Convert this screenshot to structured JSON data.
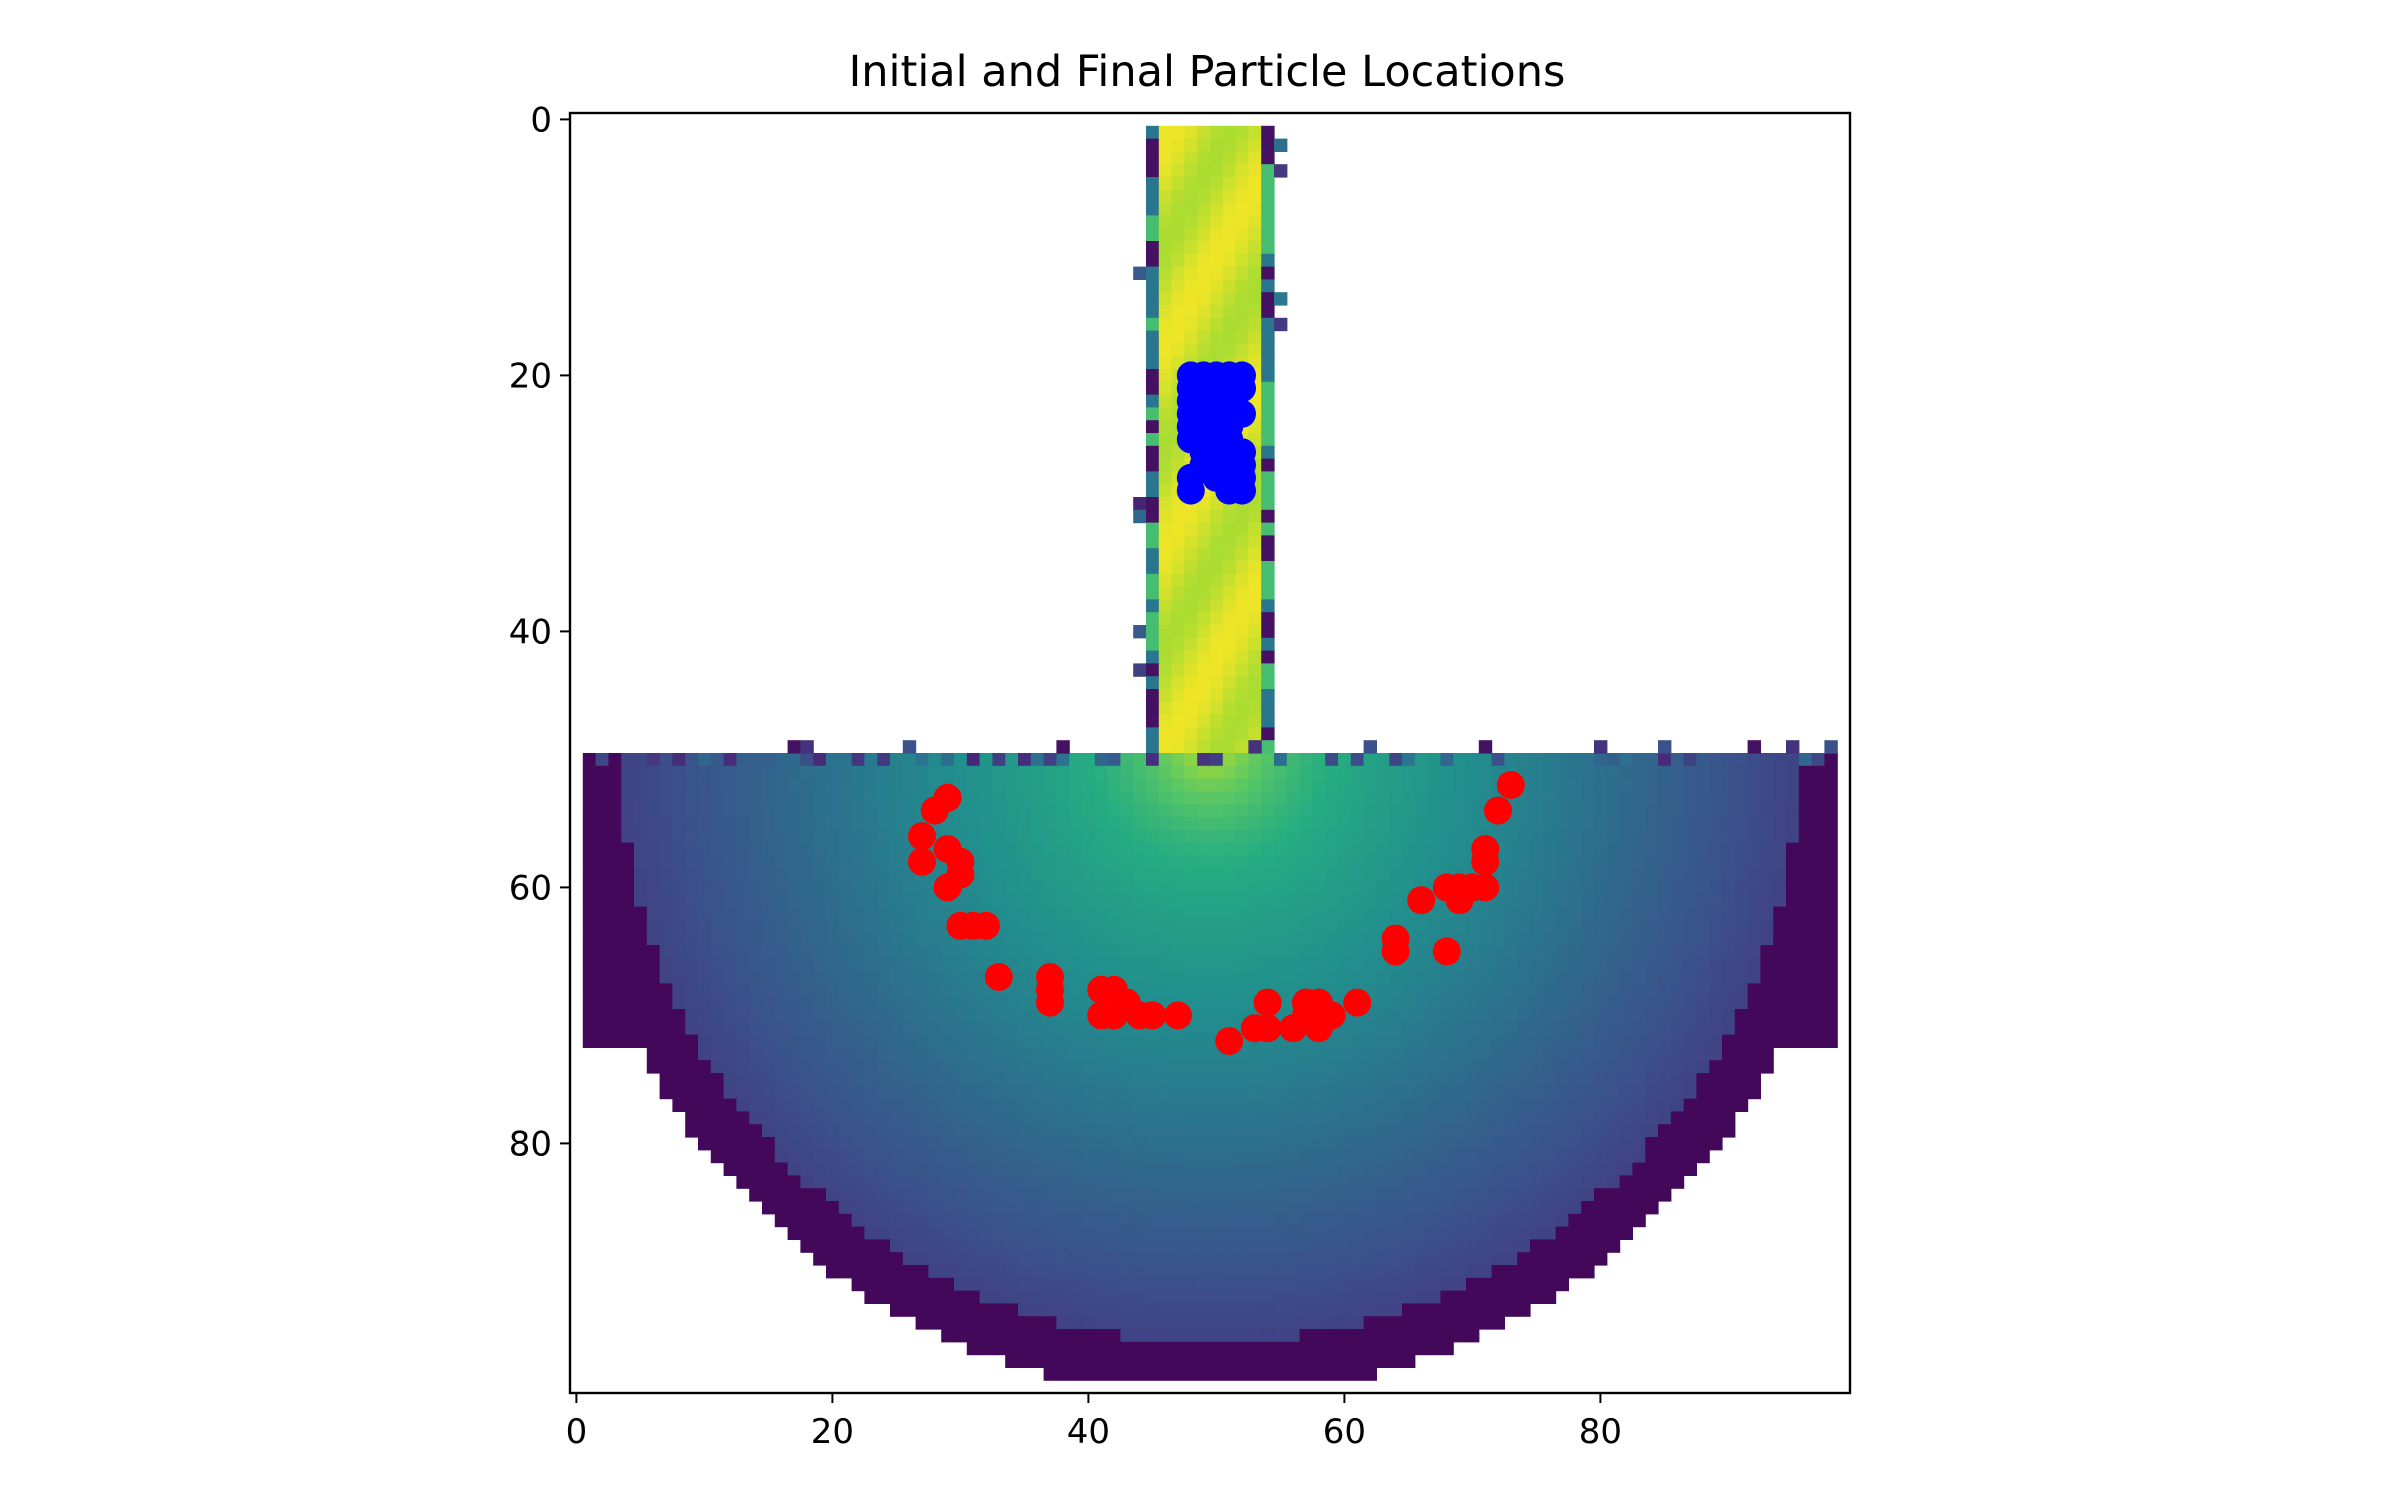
{
  "chart_data": {
    "type": "scatter",
    "title": "Initial and Final Particle Locations",
    "xlabel": "",
    "ylabel": "",
    "xlim": [
      -0.5,
      99.5
    ],
    "ylim": [
      99.5,
      -0.5
    ],
    "y_axis_inverted": true,
    "x_ticks": [
      0,
      20,
      40,
      60,
      80
    ],
    "y_ticks": [
      0,
      20,
      40,
      60,
      80
    ],
    "background": {
      "type": "heatmap",
      "colormap": "viridis",
      "description_regions": [
        "vertical channel columns 45-54, rows 1-49",
        "semi-disc basin rows 50-98"
      ]
    },
    "series": [
      {
        "color": "#0000ff",
        "points": [
          [
            48,
            20
          ],
          [
            49,
            20
          ],
          [
            50,
            20
          ],
          [
            51,
            20
          ],
          [
            52,
            20
          ],
          [
            48,
            21
          ],
          [
            50,
            21
          ],
          [
            52,
            21
          ],
          [
            48,
            22
          ],
          [
            49,
            22
          ],
          [
            50,
            22
          ],
          [
            51,
            22
          ],
          [
            48,
            23
          ],
          [
            49,
            23
          ],
          [
            50,
            23
          ],
          [
            52,
            23
          ],
          [
            48,
            24
          ],
          [
            49,
            24
          ],
          [
            51,
            24
          ],
          [
            48,
            25
          ],
          [
            50,
            25
          ],
          [
            51,
            25
          ],
          [
            49,
            26
          ],
          [
            50,
            26
          ],
          [
            52,
            26
          ],
          [
            49,
            27
          ],
          [
            50,
            27
          ],
          [
            51,
            27
          ],
          [
            52,
            27
          ],
          [
            48,
            28
          ],
          [
            50,
            28
          ],
          [
            51,
            28
          ],
          [
            52,
            28
          ],
          [
            48,
            29
          ],
          [
            51,
            29
          ],
          [
            52,
            29
          ]
        ]
      },
      {
        "color": "#ff0000",
        "points": [
          [
            29,
            53
          ],
          [
            28,
            54
          ],
          [
            27,
            56
          ],
          [
            27,
            58
          ],
          [
            29,
            57
          ],
          [
            30,
            58
          ],
          [
            30,
            59
          ],
          [
            29,
            60
          ],
          [
            30,
            63
          ],
          [
            31,
            63
          ],
          [
            32,
            63
          ],
          [
            33,
            67
          ],
          [
            37,
            67
          ],
          [
            37,
            68
          ],
          [
            37,
            69
          ],
          [
            41,
            68
          ],
          [
            42,
            68
          ],
          [
            41,
            70
          ],
          [
            42,
            70
          ],
          [
            43,
            69
          ],
          [
            44,
            70
          ],
          [
            45,
            70
          ],
          [
            47,
            70
          ],
          [
            51,
            72
          ],
          [
            53,
            71
          ],
          [
            54,
            71
          ],
          [
            54,
            69
          ],
          [
            56,
            71
          ],
          [
            57,
            70
          ],
          [
            57,
            69
          ],
          [
            58,
            71
          ],
          [
            58,
            69
          ],
          [
            59,
            70
          ],
          [
            61,
            69
          ],
          [
            64,
            64
          ],
          [
            64,
            65
          ],
          [
            66,
            61
          ],
          [
            68,
            60
          ],
          [
            68,
            65
          ],
          [
            69,
            60
          ],
          [
            69,
            61
          ],
          [
            70,
            60
          ],
          [
            71,
            57
          ],
          [
            71,
            58
          ],
          [
            71,
            60
          ],
          [
            72,
            54
          ],
          [
            73,
            52
          ]
        ]
      }
    ]
  }
}
